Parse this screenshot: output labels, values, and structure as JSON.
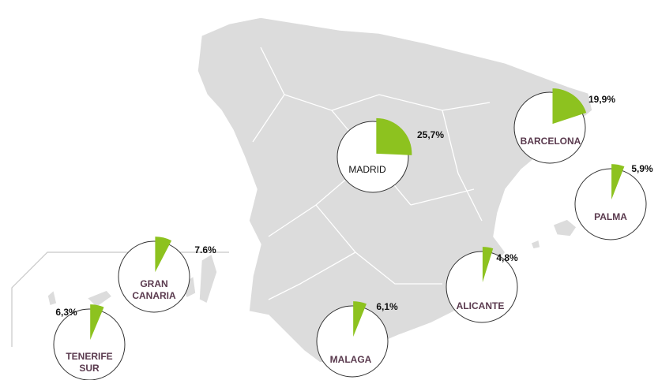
{
  "map_data": {
    "cities": [
      {
        "name": [
          "MADRID"
        ],
        "value": 25.7,
        "value_label": "25,7%"
      },
      {
        "name": [
          "BARCELONA"
        ],
        "value": 19.9,
        "value_label": "19,9%"
      },
      {
        "name": [
          "PALMA"
        ],
        "value": 5.9,
        "value_label": "5,9%"
      },
      {
        "name": [
          "ALICANTE"
        ],
        "value": 4.8,
        "value_label": "4,8%"
      },
      {
        "name": [
          "MALAGA"
        ],
        "value": 6.1,
        "value_label": "6,1%"
      },
      {
        "name": [
          "GRAN",
          "CANARIA"
        ],
        "value": 7.6,
        "value_label": "7.6%"
      },
      {
        "name": [
          "TENERIFE",
          "SUR"
        ],
        "value": 6.3,
        "value_label": "6,3%"
      }
    ],
    "wedge_color": "#8dc21f"
  }
}
